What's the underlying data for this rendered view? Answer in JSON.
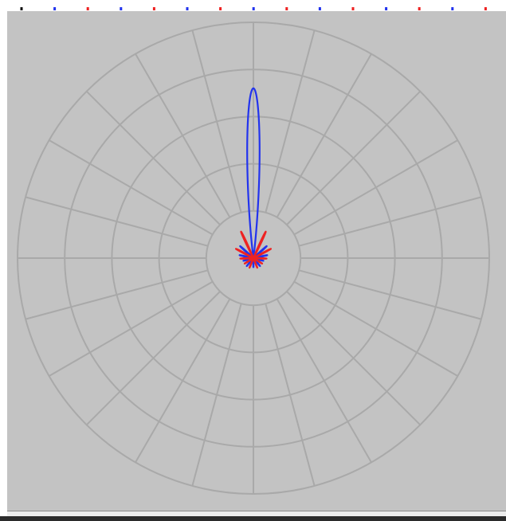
{
  "chart_data": {
    "type": "polar",
    "theta_zero": "top",
    "theta_direction": "clockwise",
    "r_rings": [
      1,
      2,
      3,
      4,
      5
    ],
    "r_max": 5,
    "spoke_step_deg": 15,
    "grid": true,
    "background_color": "#c3c3c3",
    "grid_color": "#a9a9a9",
    "series": [
      {
        "color": "#2233ee",
        "lobes": [
          {
            "angle": 0,
            "peak": 3.6,
            "width": 8
          },
          {
            "angle": -48,
            "peak": 0.38,
            "width": 4
          },
          {
            "angle": 48,
            "peak": 0.38,
            "width": 4
          },
          {
            "angle": -78,
            "peak": 0.3,
            "width": 4
          },
          {
            "angle": 78,
            "peak": 0.3,
            "width": 4
          },
          {
            "angle": -105,
            "peak": 0.22,
            "width": 4
          },
          {
            "angle": 105,
            "peak": 0.22,
            "width": 4
          },
          {
            "angle": -140,
            "peak": 0.22,
            "width": 4
          },
          {
            "angle": 140,
            "peak": 0.22,
            "width": 4
          },
          {
            "angle": 180,
            "peak": 0.2,
            "width": 4
          }
        ]
      },
      {
        "color": "#ee2222",
        "lobes": [
          {
            "angle": -25,
            "peak": 0.62,
            "width": 4
          },
          {
            "angle": 25,
            "peak": 0.62,
            "width": 4
          },
          {
            "angle": -62,
            "peak": 0.42,
            "width": 4
          },
          {
            "angle": 62,
            "peak": 0.42,
            "width": 4
          },
          {
            "angle": -92,
            "peak": 0.28,
            "width": 4
          },
          {
            "angle": 92,
            "peak": 0.28,
            "width": 4
          },
          {
            "angle": -122,
            "peak": 0.22,
            "width": 4
          },
          {
            "angle": 122,
            "peak": 0.22,
            "width": 4
          },
          {
            "angle": -158,
            "peak": 0.22,
            "width": 4
          },
          {
            "angle": 158,
            "peak": 0.22,
            "width": 4
          }
        ]
      }
    ]
  },
  "tick_strip": {
    "colors": [
      "#111111",
      "#2233ee",
      "#ee2222",
      "#2233ee",
      "#ee2222",
      "#2233ee",
      "#ee2222",
      "#2233ee",
      "#ee2222",
      "#2233ee",
      "#ee2222",
      "#2233ee",
      "#ee2222",
      "#2233ee",
      "#ee2222"
    ]
  }
}
